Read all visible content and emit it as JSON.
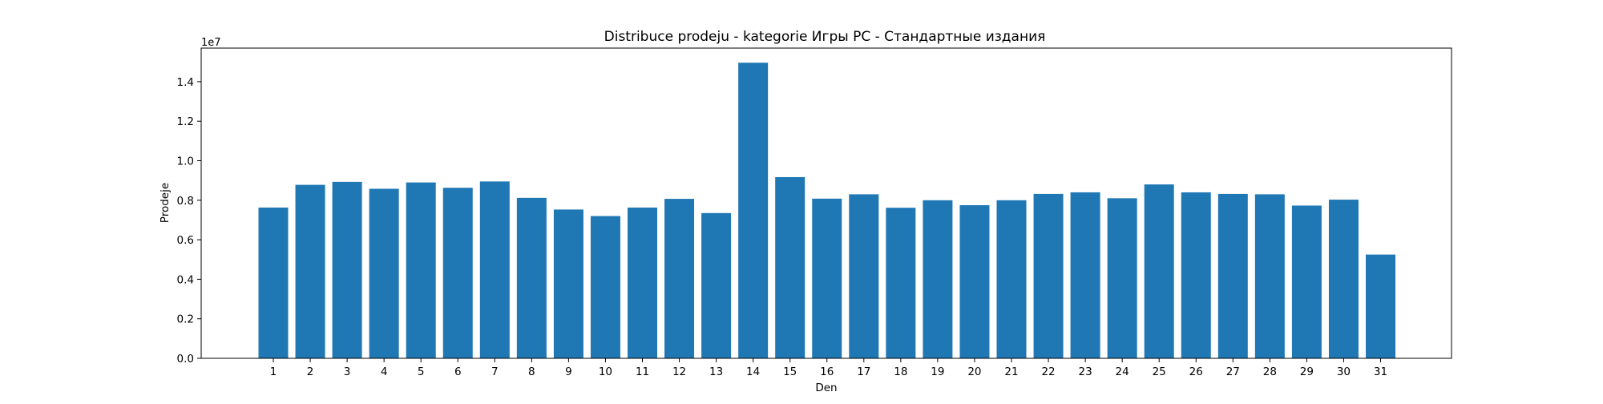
{
  "chart_data": {
    "type": "bar",
    "title": "Distribuce prodeju  - kategorie Игры PC - Стандартные издания",
    "xlabel": "Den",
    "ylabel": "Prodeje",
    "y_scale_label": "1e7",
    "y_scale": 10000000,
    "ylim": [
      0,
      1.57
    ],
    "yticks": [
      "0.0",
      "0.2",
      "0.4",
      "0.6",
      "0.8",
      "1.0",
      "1.2",
      "1.4"
    ],
    "categories": [
      "1",
      "2",
      "3",
      "4",
      "5",
      "6",
      "7",
      "8",
      "9",
      "10",
      "11",
      "12",
      "13",
      "14",
      "15",
      "16",
      "17",
      "18",
      "19",
      "20",
      "21",
      "22",
      "23",
      "24",
      "25",
      "26",
      "27",
      "28",
      "29",
      "30",
      "31"
    ],
    "values": [
      0.763,
      0.878,
      0.893,
      0.858,
      0.89,
      0.863,
      0.895,
      0.812,
      0.753,
      0.72,
      0.763,
      0.807,
      0.735,
      1.496,
      0.917,
      0.808,
      0.83,
      0.762,
      0.8,
      0.775,
      0.8,
      0.832,
      0.84,
      0.81,
      0.88,
      0.84,
      0.832,
      0.83,
      0.773,
      0.803,
      0.525
    ],
    "bar_color": "#1f77b4",
    "grid": false,
    "legend": "none"
  }
}
